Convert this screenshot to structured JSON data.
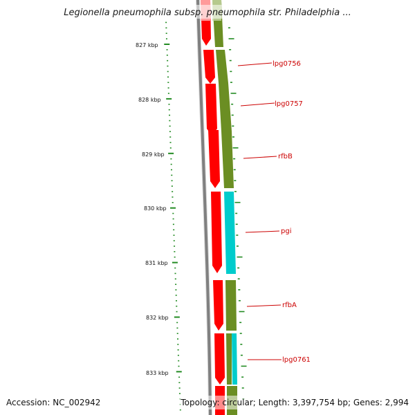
{
  "header": {
    "title": "Legionella pneumophila subsp. pneumophila str. Philadelphia ..."
  },
  "footer": {
    "accession": "Accession: NC_002942",
    "summary": "Topology: circular; Length: 3,397,754 bp; Genes: 2,994"
  },
  "ruler": {
    "labels": [
      "827 kbp",
      "828 kbp",
      "829 kbp",
      "830 kbp",
      "831 kbp",
      "832 kbp",
      "833 kbp"
    ]
  },
  "genes": [
    "lpg0756",
    "lpg0757",
    "rfbB",
    "pgi",
    "rfbA",
    "lpg0761"
  ],
  "colors": {
    "cds_forward": "#ff0000",
    "cog_olive": "#6b8e23",
    "cog_cyan": "#00cccc",
    "backbone": "#808080",
    "tick": "#228b22",
    "label": "#cc0000"
  }
}
